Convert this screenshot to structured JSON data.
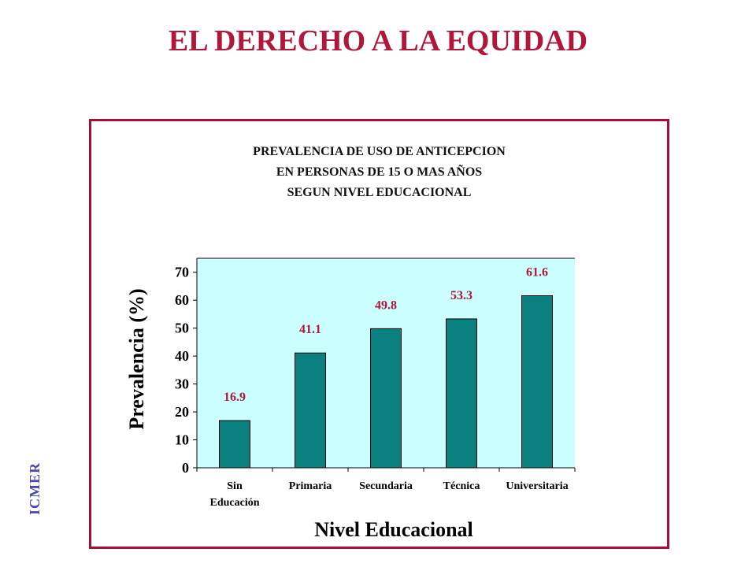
{
  "page": {
    "title": "EL DERECHO A LA EQUIDAD",
    "side_label": "ICMER"
  },
  "colors": {
    "title": "#b0173a",
    "frame": "#a50f35",
    "plot_background": "#ccffff",
    "bar": "#0a8080",
    "data_label": "#b0173a",
    "side_label": "#4a4aa8"
  },
  "chart_data": {
    "type": "bar",
    "title_lines": [
      "PREVALENCIA DE USO DE ANTICEPCION",
      "EN PERSONAS DE 15 O MAS AÑOS",
      "SEGUN NIVEL EDUCACIONAL"
    ],
    "categories": [
      [
        "Sin",
        "Educación"
      ],
      [
        "Primaria"
      ],
      [
        "Secundaria"
      ],
      [
        "Técnica"
      ],
      [
        "Universitaria"
      ]
    ],
    "values": [
      16.9,
      41.1,
      49.8,
      53.3,
      61.6
    ],
    "data_labels": [
      "16.9",
      "41.1",
      "49.8",
      "53.3",
      "61.6"
    ],
    "xlabel": "Nivel Educacional",
    "ylabel": "Prevalencia (%)",
    "ylim": [
      0,
      75
    ],
    "yticks": [
      0,
      10,
      20,
      30,
      40,
      50,
      60,
      70
    ],
    "grid": false,
    "legend": "none"
  }
}
